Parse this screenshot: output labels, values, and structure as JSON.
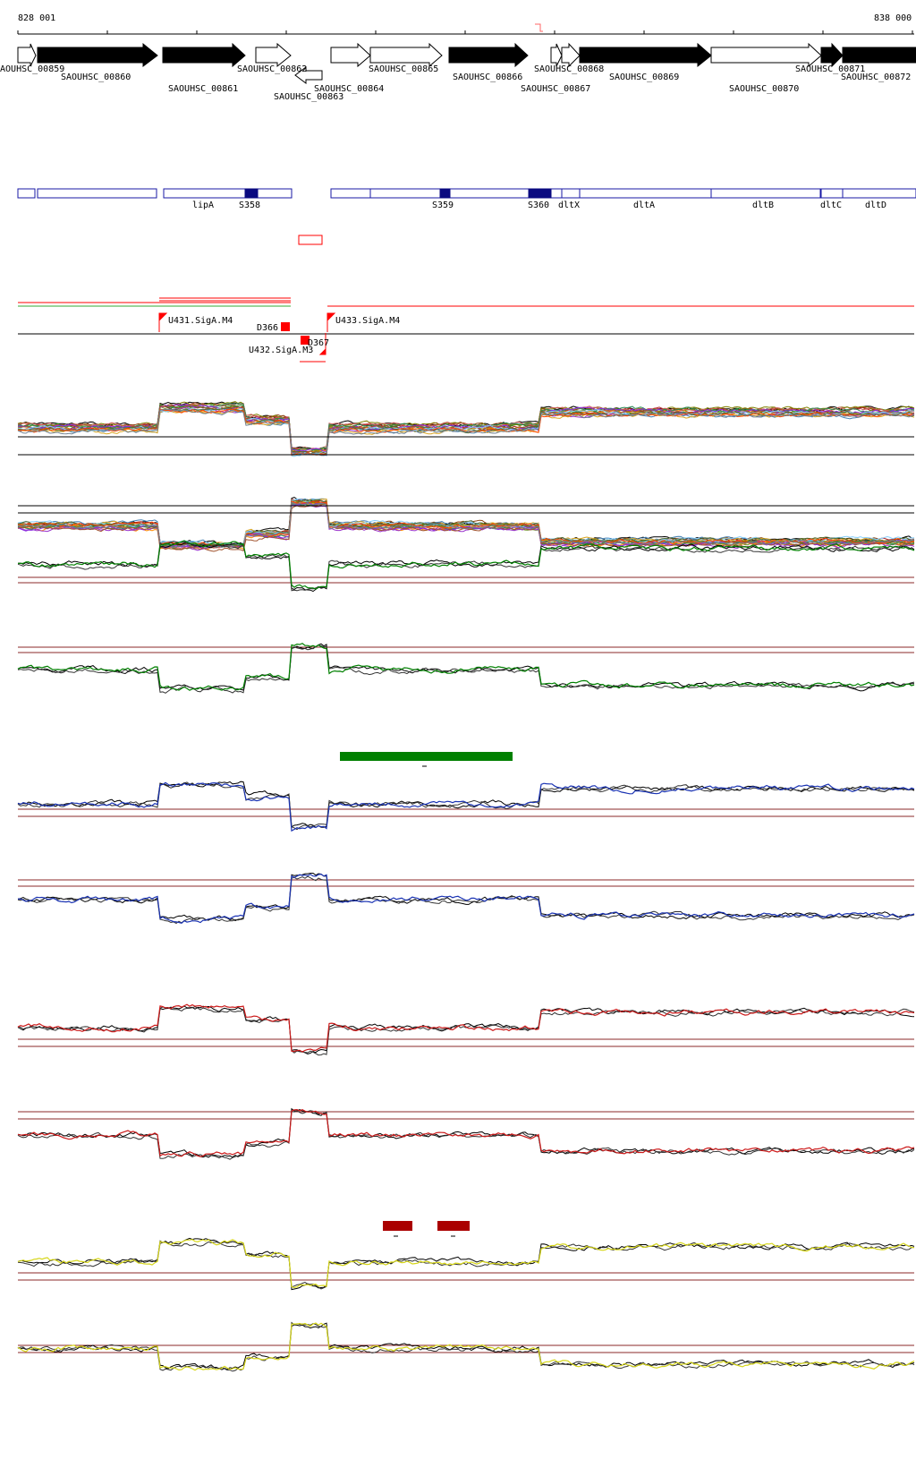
{
  "ruler": {
    "start_label": "828 001",
    "end_label": "838 000"
  },
  "genes": [
    {
      "label": "SAOUHSC_00859",
      "strand": "+",
      "filled": false
    },
    {
      "label": "SAOUHSC_00860",
      "strand": "+",
      "filled": true
    },
    {
      "label": "SAOUHSC_00861",
      "strand": "+",
      "filled": true
    },
    {
      "label": "SAOUHSC_00862",
      "strand": "+",
      "filled": false
    },
    {
      "label": "SAOUHSC_00863",
      "strand": "-",
      "filled": false
    },
    {
      "label": "SAOUHSC_00864",
      "strand": "+",
      "filled": false
    },
    {
      "label": "SAOUHSC_00865",
      "strand": "+",
      "filled": false
    },
    {
      "label": "SAOUHSC_00866",
      "strand": "+",
      "filled": true
    },
    {
      "label": "SAOUHSC_00867",
      "strand": "+",
      "filled": false
    },
    {
      "label": "SAOUHSC_00868",
      "strand": "+",
      "filled": false
    },
    {
      "label": "SAOUHSC_00869",
      "strand": "+",
      "filled": true
    },
    {
      "label": "SAOUHSC_00870",
      "strand": "+",
      "filled": false
    },
    {
      "label": "SAOUHSC_00871",
      "strand": "+",
      "filled": true
    },
    {
      "label": "SAOUHSC_00872",
      "strand": "+",
      "filled": true
    }
  ],
  "features": [
    {
      "label": "lipA"
    },
    {
      "label": "S358"
    },
    {
      "label": "S359"
    },
    {
      "label": "S360"
    },
    {
      "label": "dltX"
    },
    {
      "label": "dltA"
    },
    {
      "label": "dltB"
    },
    {
      "label": "dltC"
    },
    {
      "label": "dltD"
    }
  ],
  "transcripts": [
    {
      "label": "U431.SigA.M4"
    },
    {
      "label": "D366"
    },
    {
      "label": "U432.SigA.M3"
    },
    {
      "label": "D367"
    },
    {
      "label": "U433.SigA.M4"
    }
  ],
  "colors": {
    "gene_fill": "#000000",
    "feature_outline": "#1a1aa6",
    "feature_fill": "#0a0a80",
    "transcript": "#ff0000",
    "green_track": "#008000",
    "blue_track": "#1a33b3",
    "red_track": "#cc1a1a",
    "yellow_track": "#d6d619",
    "threshold_line": "#8b2a2a",
    "green_bar": "#008000",
    "dark_red_bar": "#aa0000"
  }
}
